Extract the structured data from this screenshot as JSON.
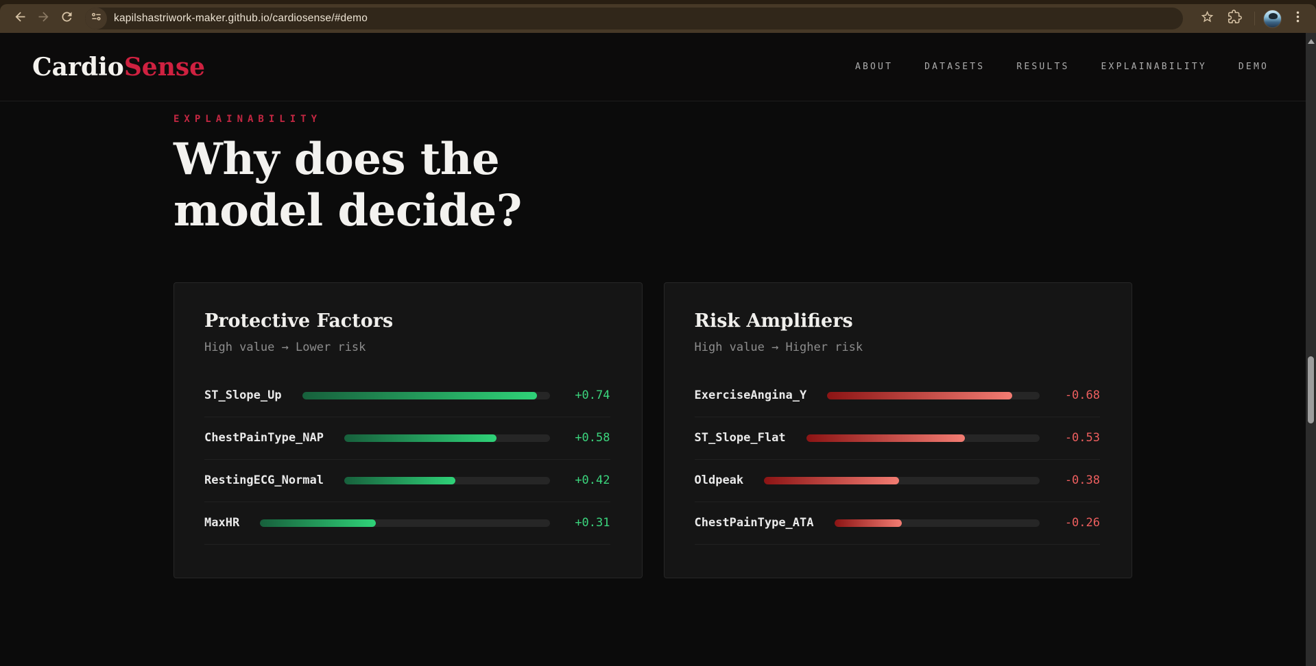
{
  "browser": {
    "url": "kapilshastriwork-maker.github.io/cardiosense/#demo"
  },
  "header": {
    "logo_primary": "Cardio",
    "logo_accent": "Sense",
    "nav": [
      {
        "label": "ABOUT"
      },
      {
        "label": "DATASETS"
      },
      {
        "label": "RESULTS"
      },
      {
        "label": "EXPLAINABILITY"
      },
      {
        "label": "DEMO"
      }
    ]
  },
  "section": {
    "eyebrow": "EXPLAINABILITY",
    "title": "Why does the model decide?"
  },
  "cards": [
    {
      "title": "Protective Factors",
      "subtitle": "High value → Lower risk",
      "direction": "positive",
      "rows": [
        {
          "label": "ST_Slope_Up",
          "value": "+0.74",
          "fill_pct": 95
        },
        {
          "label": "ChestPainType_NAP",
          "value": "+0.58",
          "fill_pct": 74
        },
        {
          "label": "RestingECG_Normal",
          "value": "+0.42",
          "fill_pct": 54
        },
        {
          "label": "MaxHR",
          "value": "+0.31",
          "fill_pct": 40
        }
      ]
    },
    {
      "title": "Risk Amplifiers",
      "subtitle": "High value → Higher risk",
      "direction": "negative",
      "rows": [
        {
          "label": "ExerciseAngina_Y",
          "value": "-0.68",
          "fill_pct": 87
        },
        {
          "label": "ST_Slope_Flat",
          "value": "-0.53",
          "fill_pct": 68
        },
        {
          "label": "Oldpeak",
          "value": "-0.38",
          "fill_pct": 49
        },
        {
          "label": "ChestPainType_ATA",
          "value": "-0.26",
          "fill_pct": 33
        }
      ]
    }
  ],
  "colors": {
    "accent": "#cf2140",
    "green_text": "#3bd57d",
    "green_dark": "#17603c",
    "green_bright": "#2fd278",
    "red_text": "#ee5f5f",
    "red_dark": "#8c1414",
    "red_bright": "#f27c72"
  }
}
